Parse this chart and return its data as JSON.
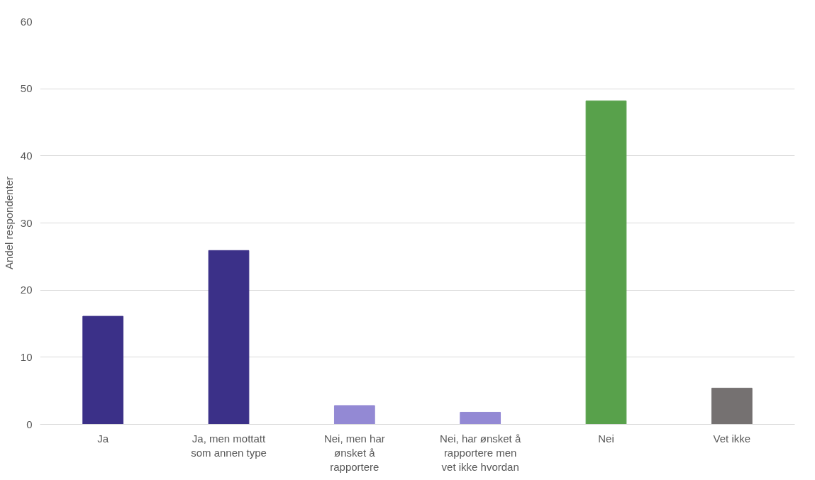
{
  "chart_data": {
    "type": "bar",
    "ylabel": "Andel respondenter",
    "categories": [
      "Ja",
      "Ja, men mottatt som annen type",
      "Nei, men har ønsket å rapportere",
      "Nei, har ønsket å rapportere men vet ikke hvordan",
      "Nei",
      "Vet ikke"
    ],
    "values": [
      16.1,
      25.9,
      2.8,
      1.8,
      48.2,
      5.4
    ],
    "colors": [
      "#3b3088",
      "#3b3088",
      "#9389d4",
      "#9389d4",
      "#58a14b",
      "#757171"
    ],
    "ylim": [
      0,
      60
    ],
    "yticks": [
      0,
      10,
      20,
      30,
      40,
      50,
      60
    ],
    "grid": "y"
  }
}
